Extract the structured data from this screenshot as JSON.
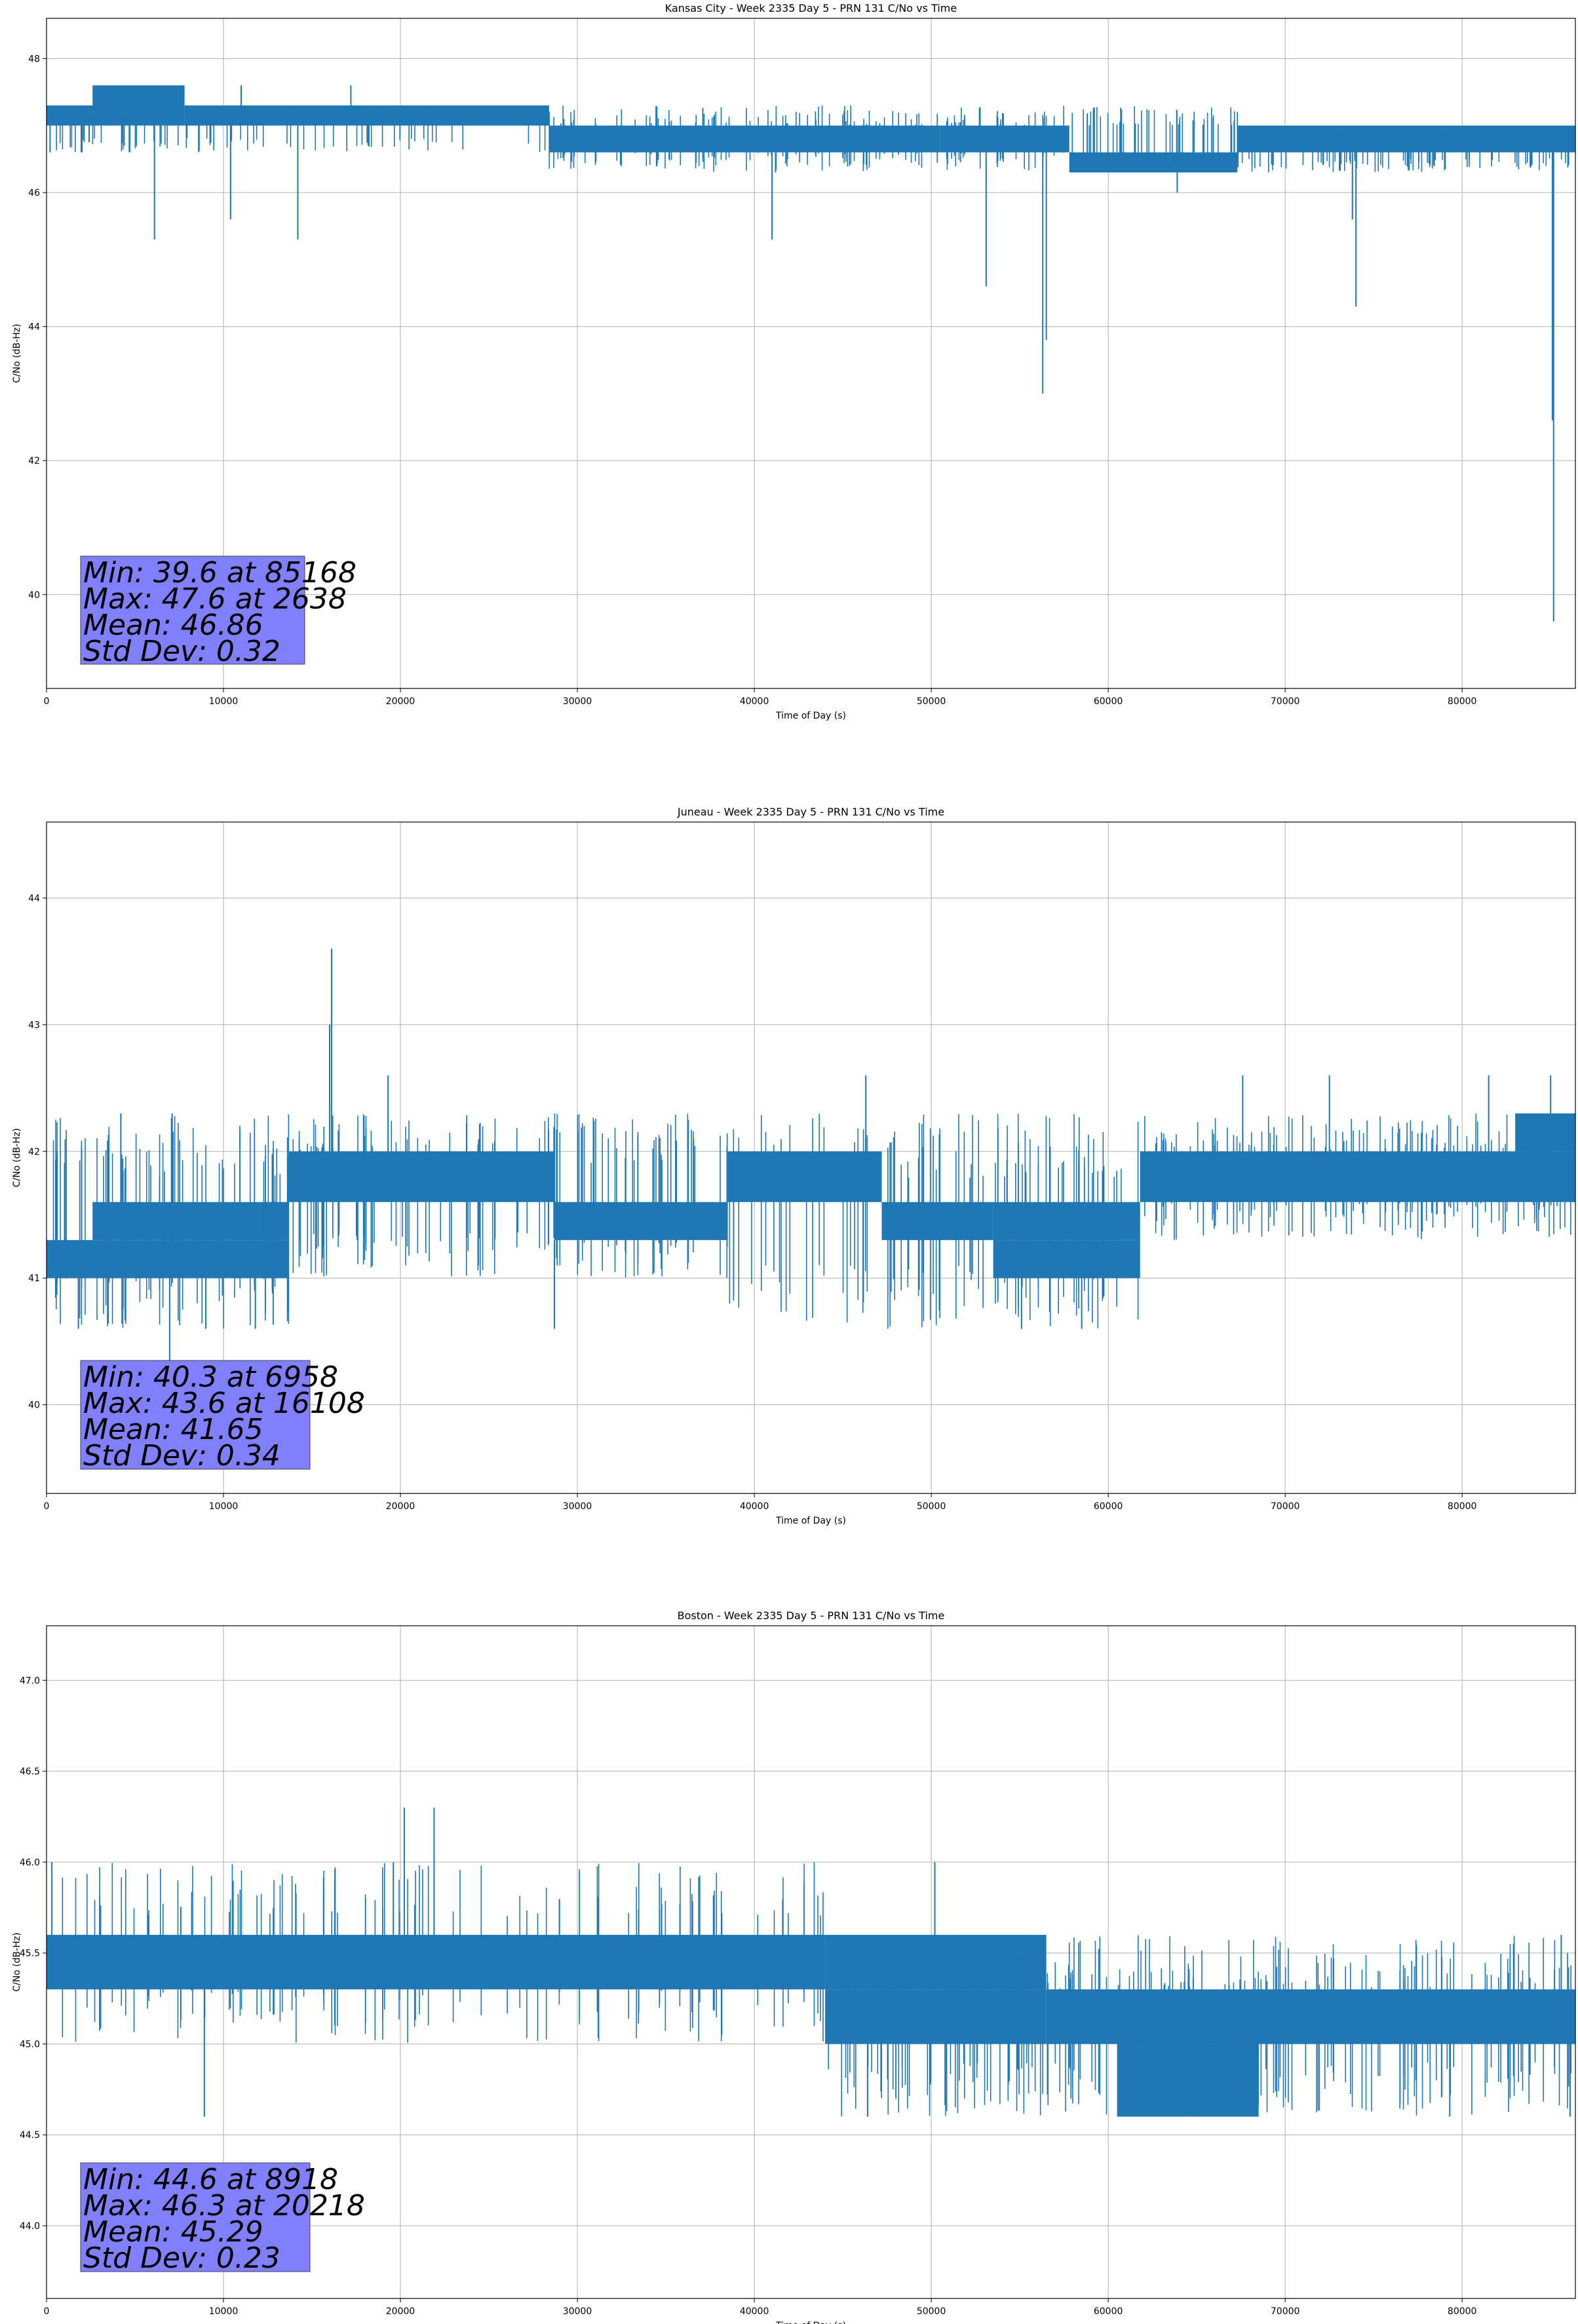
{
  "chart_data": [
    {
      "type": "line",
      "title": "Kansas City - Week 2335 Day 5 - PRN 131 C/No vs Time",
      "xlabel": "Time of Day (s)",
      "ylabel": "C/No (dB-Hz)",
      "xlim": [
        0,
        86400
      ],
      "ylim": [
        38.6,
        48.6
      ],
      "xticks": [
        0,
        10000,
        20000,
        30000,
        40000,
        50000,
        60000,
        70000,
        80000
      ],
      "yticks": [
        40,
        42,
        44,
        46,
        48
      ],
      "ytick_labels": [
        "40",
        "42",
        "44",
        "46",
        "48"
      ],
      "grid": true,
      "color": "#1f77b4",
      "bands": [
        {
          "x": [
            0,
            7800
          ],
          "y": [
            47.0,
            47.3
          ]
        },
        {
          "x": [
            2600,
            7800
          ],
          "y": [
            47.3,
            47.6
          ]
        },
        {
          "x": [
            7800,
            28400
          ],
          "y": [
            47.0,
            47.3
          ]
        },
        {
          "x": [
            28400,
            50500
          ],
          "y": [
            46.6,
            47.0
          ]
        },
        {
          "x": [
            50500,
            57800
          ],
          "y": [
            46.6,
            47.0
          ]
        },
        {
          "x": [
            57800,
            67300
          ],
          "y": [
            46.3,
            46.6
          ]
        },
        {
          "x": [
            67300,
            86400
          ],
          "y": [
            46.6,
            47.0
          ]
        }
      ],
      "fringe_spikes": [
        {
          "x": [
            0,
            28400
          ],
          "y": [
            46.6,
            47.3
          ],
          "count": 70
        },
        {
          "x": [
            28400,
            50500
          ],
          "y": [
            46.3,
            47.3
          ],
          "count": 90
        },
        {
          "x": [
            50500,
            67300
          ],
          "y": [
            46.3,
            47.3
          ],
          "count": 80
        },
        {
          "x": [
            67300,
            86400
          ],
          "y": [
            46.3,
            47.0
          ],
          "count": 90
        }
      ],
      "spikes": [
        [
          200,
          46.6
        ],
        [
          2000,
          46.6
        ],
        [
          4700,
          46.6
        ],
        [
          6100,
          45.3
        ],
        [
          8600,
          46.6
        ],
        [
          10400,
          45.6
        ],
        [
          11000,
          47.6
        ],
        [
          14200,
          45.3
        ],
        [
          17200,
          47.6
        ],
        [
          41000,
          45.3
        ],
        [
          41200,
          46.3
        ],
        [
          53100,
          44.6
        ],
        [
          56300,
          43.0
        ],
        [
          56500,
          43.8
        ],
        [
          63900,
          46.0
        ],
        [
          73800,
          45.6
        ],
        [
          74000,
          44.3
        ],
        [
          85100,
          42.6
        ],
        [
          85168,
          39.6
        ]
      ],
      "stats_box": [
        "Min: 39.6 at 85168",
        "Max: 47.6 at 2638",
        "Mean: 46.86",
        "Std Dev: 0.32"
      ]
    },
    {
      "type": "line",
      "title": "Juneau - Week 2335 Day 5 - PRN 131 C/No vs Time",
      "xlabel": "Time of Day (s)",
      "ylabel": "C/No (dB-Hz)",
      "xlim": [
        0,
        86400
      ],
      "ylim": [
        39.3,
        44.6
      ],
      "xticks": [
        0,
        10000,
        20000,
        30000,
        40000,
        50000,
        60000,
        70000,
        80000
      ],
      "yticks": [
        40,
        41,
        42,
        43,
        44
      ],
      "ytick_labels": [
        "40",
        "41",
        "42",
        "43",
        "44"
      ],
      "grid": true,
      "color": "#1f77b4",
      "bands": [
        {
          "x": [
            0,
            13700
          ],
          "y": [
            41.0,
            41.3
          ]
        },
        {
          "x": [
            2600,
            12000
          ],
          "y": [
            41.3,
            41.6
          ]
        },
        {
          "x": [
            12000,
            13700
          ],
          "y": [
            41.3,
            41.6
          ]
        },
        {
          "x": [
            13700,
            28700
          ],
          "y": [
            41.6,
            42.0
          ]
        },
        {
          "x": [
            28700,
            38500
          ],
          "y": [
            41.3,
            41.6
          ]
        },
        {
          "x": [
            38500,
            47200
          ],
          "y": [
            41.6,
            42.0
          ]
        },
        {
          "x": [
            47200,
            53500
          ],
          "y": [
            41.3,
            41.6
          ]
        },
        {
          "x": [
            53500,
            61800
          ],
          "y": [
            41.0,
            41.3
          ]
        },
        {
          "x": [
            53500,
            61800
          ],
          "y": [
            41.3,
            41.6
          ]
        },
        {
          "x": [
            61800,
            86400
          ],
          "y": [
            41.6,
            42.0
          ]
        },
        {
          "x": [
            83000,
            86400
          ],
          "y": [
            42.0,
            42.3
          ]
        }
      ],
      "fringe_spikes": [
        {
          "x": [
            0,
            13700
          ],
          "y": [
            40.6,
            42.3
          ],
          "count": 70
        },
        {
          "x": [
            13700,
            38500
          ],
          "y": [
            41.0,
            42.3
          ],
          "count": 110
        },
        {
          "x": [
            38500,
            61800
          ],
          "y": [
            40.6,
            42.3
          ],
          "count": 90
        },
        {
          "x": [
            61800,
            86400
          ],
          "y": [
            41.3,
            42.3
          ],
          "count": 110
        }
      ],
      "spikes": [
        [
          600,
          42.0
        ],
        [
          1800,
          40.6
        ],
        [
          4200,
          42.3
        ],
        [
          6958,
          40.3
        ],
        [
          7100,
          42.3
        ],
        [
          9000,
          40.6
        ],
        [
          11800,
          40.6
        ],
        [
          16108,
          43.6
        ],
        [
          16000,
          43.0
        ],
        [
          19300,
          42.6
        ],
        [
          28700,
          40.6
        ],
        [
          46300,
          42.6
        ],
        [
          55100,
          40.6
        ],
        [
          58500,
          40.6
        ],
        [
          67600,
          42.6
        ],
        [
          72500,
          42.6
        ],
        [
          81500,
          42.6
        ],
        [
          85000,
          42.6
        ]
      ],
      "stats_box": [
        "Min: 40.3 at 6958",
        "Max: 43.6 at 16108",
        "Mean: 41.65",
        "Std Dev: 0.34"
      ]
    },
    {
      "type": "line",
      "title": "Boston - Week 2335 Day 5 - PRN 131 C/No vs Time",
      "xlabel": "Time of Day (s)",
      "ylabel": "C/No (dB-Hz)",
      "xlim": [
        0,
        86400
      ],
      "ylim": [
        43.6,
        47.3
      ],
      "xticks": [
        0,
        10000,
        20000,
        30000,
        40000,
        50000,
        60000,
        70000,
        80000
      ],
      "yticks": [
        44.0,
        44.5,
        45.0,
        45.5,
        46.0,
        46.5,
        47.0
      ],
      "ytick_labels": [
        "44.0",
        "44.5",
        "45.0",
        "45.5",
        "46.0",
        "46.5",
        "47.0"
      ],
      "grid": true,
      "color": "#1f77b4",
      "bands": [
        {
          "x": [
            0,
            44000
          ],
          "y": [
            45.3,
            45.6
          ]
        },
        {
          "x": [
            44000,
            56500
          ],
          "y": [
            45.3,
            45.6
          ]
        },
        {
          "x": [
            44000,
            56500
          ],
          "y": [
            45.0,
            45.3
          ]
        },
        {
          "x": [
            56500,
            86400
          ],
          "y": [
            45.0,
            45.3
          ]
        },
        {
          "x": [
            60500,
            68500
          ],
          "y": [
            44.6,
            45.0
          ]
        }
      ],
      "fringe_spikes": [
        {
          "x": [
            0,
            44000
          ],
          "y": [
            45.0,
            46.0
          ],
          "count": 110
        },
        {
          "x": [
            44000,
            60500
          ],
          "y": [
            44.6,
            45.6
          ],
          "count": 80
        },
        {
          "x": [
            60500,
            86400
          ],
          "y": [
            44.6,
            45.6
          ],
          "count": 110
        }
      ],
      "spikes": [
        [
          300,
          46.0
        ],
        [
          8918,
          44.6
        ],
        [
          20218,
          46.3
        ],
        [
          21900,
          46.3
        ],
        [
          19600,
          46.0
        ],
        [
          46400,
          44.6
        ],
        [
          50200,
          46.0
        ],
        [
          79300,
          44.6
        ],
        [
          86100,
          44.6
        ],
        [
          85600,
          45.6
        ]
      ],
      "stats_box": [
        "Min: 44.6 at 8918",
        "Max: 46.3 at 20218",
        "Mean: 45.29",
        "Std Dev: 0.23"
      ]
    }
  ],
  "colors": {
    "line": "#1f77b4",
    "grid": "#b0b0b0",
    "stats_box_fill": "#8080ff",
    "stats_box_alpha": 1.0
  }
}
